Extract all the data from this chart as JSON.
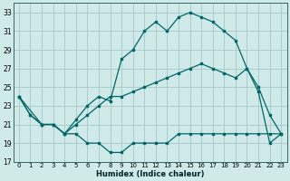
{
  "xlabel": "Humidex (Indice chaleur)",
  "background_color": "#d0eaea",
  "grid_color": "#aacccc",
  "line_color": "#006666",
  "xlim": [
    -0.5,
    23.5
  ],
  "ylim": [
    17,
    34
  ],
  "yticks": [
    17,
    19,
    21,
    23,
    25,
    27,
    29,
    31,
    33
  ],
  "xticks": [
    0,
    1,
    2,
    3,
    4,
    5,
    6,
    7,
    8,
    9,
    10,
    11,
    12,
    13,
    14,
    15,
    16,
    17,
    18,
    19,
    20,
    21,
    22,
    23
  ],
  "line1_x": [
    0,
    1,
    2,
    3,
    4,
    5,
    6,
    7,
    8,
    9,
    10,
    11,
    12,
    13,
    14,
    15,
    16,
    17,
    18,
    19,
    20,
    21,
    22,
    23
  ],
  "line1_y": [
    24,
    22,
    21,
    21,
    20,
    20,
    19,
    19,
    18,
    18,
    19,
    19,
    19,
    19,
    20,
    20,
    20,
    20,
    20,
    20,
    20,
    20,
    20,
    20
  ],
  "line2_x": [
    0,
    1,
    2,
    3,
    4,
    5,
    6,
    7,
    8,
    9,
    10,
    11,
    12,
    13,
    14,
    15,
    16,
    17,
    18,
    19,
    20,
    21,
    22,
    23
  ],
  "line2_y": [
    24,
    22,
    21,
    21,
    20,
    21.5,
    23,
    24,
    23.5,
    28,
    29,
    31,
    32,
    31,
    32.5,
    33,
    32.5,
    32,
    31,
    30,
    27,
    24.5,
    19,
    20
  ],
  "line3_x": [
    0,
    2,
    3,
    4,
    5,
    6,
    7,
    8,
    9,
    10,
    11,
    12,
    13,
    14,
    15,
    16,
    17,
    18,
    19,
    20,
    21,
    22,
    23
  ],
  "line3_y": [
    24,
    21,
    21,
    20,
    21,
    22,
    23,
    24,
    24,
    24.5,
    25,
    25.5,
    26,
    26.5,
    27,
    27.5,
    27,
    26.5,
    26,
    27,
    25,
    22,
    20
  ]
}
